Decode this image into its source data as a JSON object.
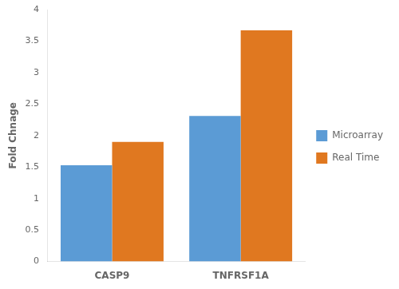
{
  "chart_data": {
    "type": "bar",
    "categories": [
      "CASP9",
      "TNFRSF1A"
    ],
    "series": [
      {
        "name": "Microarray",
        "color": "#5B9BD5",
        "values": [
          1.53,
          2.31
        ]
      },
      {
        "name": "Real Time",
        "color": "#E07820",
        "values": [
          1.9,
          3.67
        ]
      }
    ],
    "ylabel": "Fold Chnage",
    "ylim": [
      0,
      4
    ],
    "yticks": [
      0,
      0.5,
      1,
      1.5,
      2,
      2.5,
      3,
      3.5,
      4
    ],
    "grid": false,
    "legend": "right"
  }
}
